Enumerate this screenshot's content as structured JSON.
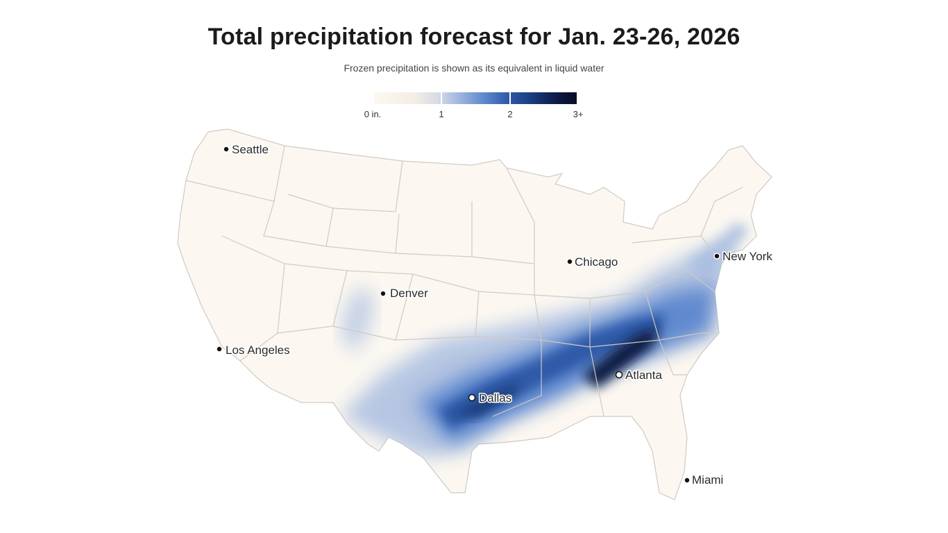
{
  "title": "Total precipitation forecast for Jan. 23-26, 2026",
  "subtitle": "Frozen precipitation is shown as its equivalent in liquid water",
  "legend": {
    "ticks": [
      "0 in.",
      "1",
      "2",
      "3+"
    ],
    "colors": [
      "#fcf8f1",
      "#a9bde0",
      "#2e5aa8",
      "#090d26"
    ]
  },
  "cities": {
    "seattle": "Seattle",
    "denver": "Denver",
    "los_angeles": "Los Angeles",
    "chicago": "Chicago",
    "new_york": "New York",
    "atlanta": "Atlanta",
    "dallas": "Dallas",
    "miami": "Miami"
  }
}
